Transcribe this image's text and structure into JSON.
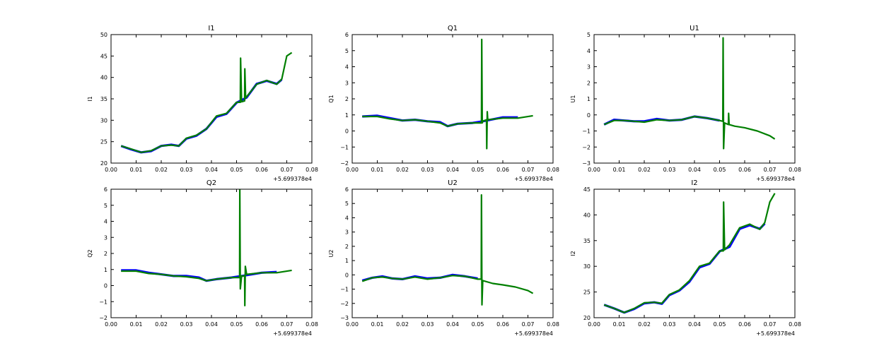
{
  "colors": {
    "series_a": "#0000ff",
    "series_b": "#007f00",
    "axes": "#000000",
    "background": "#ffffff"
  },
  "chart_data": [
    {
      "type": "line",
      "title": "I1",
      "ylabel": "I1",
      "xlabel": "",
      "xlim": [
        0.0,
        0.08
      ],
      "ylim": [
        20,
        50
      ],
      "x_ticks": [
        "0.00",
        "0.01",
        "0.02",
        "0.03",
        "0.04",
        "0.05",
        "0.06",
        "0.07",
        "0.08"
      ],
      "y_ticks": [
        "20",
        "25",
        "30",
        "35",
        "40",
        "45",
        "50"
      ],
      "x_offset": "+5.699378e4",
      "series": [
        {
          "name": "blue",
          "color": "#0000ff",
          "x": [
            0.004,
            0.008,
            0.012,
            0.016,
            0.02,
            0.024,
            0.027,
            0.03,
            0.034,
            0.038,
            0.042,
            0.046,
            0.05,
            0.054,
            0.058,
            0.062,
            0.066,
            0.068
          ],
          "y": [
            24,
            23.2,
            22.5,
            22.8,
            24,
            24.3,
            24,
            25.7,
            26.4,
            28,
            30.8,
            31.5,
            34.1,
            35.3,
            38.5,
            39.2,
            38.5,
            39.5
          ]
        },
        {
          "name": "green",
          "color": "#007f00",
          "x": [
            0.004,
            0.008,
            0.012,
            0.016,
            0.02,
            0.024,
            0.027,
            0.03,
            0.034,
            0.038,
            0.042,
            0.046,
            0.05,
            0.0515,
            0.0516,
            0.052,
            0.0532,
            0.0533,
            0.0536,
            0.058,
            0.062,
            0.066,
            0.068,
            0.07,
            0.072
          ],
          "y": [
            24,
            23.3,
            22.5,
            22.9,
            24,
            24.2,
            24,
            25.8,
            26.5,
            28,
            31,
            31.6,
            34.2,
            34.2,
            44.5,
            34.3,
            34.5,
            42,
            35.2,
            38.4,
            39.3,
            38.4,
            39.6,
            45,
            45.8
          ]
        }
      ]
    },
    {
      "type": "line",
      "title": "Q1",
      "ylabel": "Q1",
      "xlabel": "",
      "xlim": [
        0.0,
        0.08
      ],
      "ylim": [
        -2,
        6
      ],
      "x_ticks": [
        "0.00",
        "0.01",
        "0.02",
        "0.03",
        "0.04",
        "0.05",
        "0.06",
        "0.07",
        "0.08"
      ],
      "y_ticks": [
        "−2",
        "−1",
        "0",
        "1",
        "2",
        "3",
        "4",
        "5",
        "6"
      ],
      "x_offset": "+5.699378e4",
      "series": [
        {
          "name": "blue",
          "color": "#0000ff",
          "x": [
            0.004,
            0.01,
            0.015,
            0.02,
            0.025,
            0.03,
            0.035,
            0.038,
            0.042,
            0.048,
            0.052,
            0.06,
            0.066
          ],
          "y": [
            0.9,
            0.95,
            0.8,
            0.65,
            0.7,
            0.6,
            0.55,
            0.3,
            0.45,
            0.5,
            0.6,
            0.85,
            0.85
          ]
        },
        {
          "name": "green",
          "color": "#007f00",
          "x": [
            0.004,
            0.01,
            0.015,
            0.02,
            0.025,
            0.03,
            0.035,
            0.038,
            0.042,
            0.048,
            0.0515,
            0.0516,
            0.0518,
            0.052,
            0.0535,
            0.0536,
            0.0538,
            0.054,
            0.06,
            0.066,
            0.072
          ],
          "y": [
            0.9,
            0.9,
            0.75,
            0.65,
            0.7,
            0.6,
            0.5,
            0.3,
            0.45,
            0.5,
            0.5,
            5.7,
            0.5,
            0.6,
            0.7,
            -1.1,
            1.2,
            0.7,
            0.8,
            0.8,
            0.95
          ]
        }
      ]
    },
    {
      "type": "line",
      "title": "U1",
      "ylabel": "U1",
      "xlabel": "",
      "xlim": [
        0.0,
        0.08
      ],
      "ylim": [
        -3,
        5
      ],
      "x_ticks": [
        "0.00",
        "0.01",
        "0.02",
        "0.03",
        "0.04",
        "0.05",
        "0.06",
        "0.07",
        "0.08"
      ],
      "y_ticks": [
        "−3",
        "−2",
        "−1",
        "0",
        "1",
        "2",
        "3",
        "4",
        "5"
      ],
      "x_offset": "+5.699378e4",
      "series": [
        {
          "name": "blue",
          "color": "#0000ff",
          "x": [
            0.004,
            0.008,
            0.012,
            0.016,
            0.02,
            0.025,
            0.03,
            0.035,
            0.04,
            0.045,
            0.05
          ],
          "y": [
            -0.6,
            -0.3,
            -0.35,
            -0.4,
            -0.4,
            -0.25,
            -0.35,
            -0.3,
            -0.1,
            -0.2,
            -0.35
          ]
        },
        {
          "name": "green",
          "color": "#007f00",
          "x": [
            0.004,
            0.008,
            0.012,
            0.016,
            0.02,
            0.025,
            0.03,
            0.035,
            0.04,
            0.045,
            0.05,
            0.0513,
            0.0514,
            0.0516,
            0.052,
            0.0535,
            0.0536,
            0.0538,
            0.056,
            0.06,
            0.065,
            0.07,
            0.072
          ],
          "y": [
            -0.6,
            -0.35,
            -0.35,
            -0.4,
            -0.45,
            -0.3,
            -0.35,
            -0.3,
            -0.1,
            -0.2,
            -0.35,
            -0.4,
            4.8,
            -2.1,
            -0.5,
            -0.6,
            0.1,
            -0.6,
            -0.7,
            -0.8,
            -1.0,
            -1.3,
            -1.5
          ]
        }
      ]
    },
    {
      "type": "line",
      "title": "Q2",
      "ylabel": "Q2",
      "xlabel": "",
      "xlim": [
        0.0,
        0.08
      ],
      "ylim": [
        -2,
        6
      ],
      "x_ticks": [
        "0.00",
        "0.01",
        "0.02",
        "0.03",
        "0.04",
        "0.05",
        "0.06",
        "0.07",
        "0.08"
      ],
      "y_ticks": [
        "−2",
        "−1",
        "0",
        "1",
        "2",
        "3",
        "4",
        "5",
        "6"
      ],
      "x_offset": "+5.699378e4",
      "series": [
        {
          "name": "blue",
          "color": "#0000ff",
          "x": [
            0.004,
            0.01,
            0.015,
            0.02,
            0.025,
            0.03,
            0.035,
            0.038,
            0.042,
            0.048,
            0.052,
            0.06,
            0.066
          ],
          "y": [
            0.95,
            0.95,
            0.8,
            0.7,
            0.6,
            0.6,
            0.5,
            0.3,
            0.4,
            0.5,
            0.6,
            0.8,
            0.85
          ]
        },
        {
          "name": "green",
          "color": "#007f00",
          "x": [
            0.004,
            0.01,
            0.015,
            0.02,
            0.025,
            0.03,
            0.035,
            0.038,
            0.042,
            0.048,
            0.0512,
            0.0513,
            0.0515,
            0.052,
            0.0532,
            0.0533,
            0.0535,
            0.054,
            0.06,
            0.066,
            0.072
          ],
          "y": [
            0.9,
            0.9,
            0.75,
            0.7,
            0.6,
            0.55,
            0.45,
            0.3,
            0.4,
            0.5,
            0.5,
            6.0,
            -0.2,
            0.6,
            0.6,
            -1.25,
            1.2,
            0.7,
            0.8,
            0.8,
            0.95
          ]
        }
      ]
    },
    {
      "type": "line",
      "title": "U2",
      "ylabel": "U2",
      "xlabel": "",
      "xlim": [
        0.0,
        0.08
      ],
      "ylim": [
        -3,
        6
      ],
      "x_ticks": [
        "0.00",
        "0.01",
        "0.02",
        "0.03",
        "0.04",
        "0.05",
        "0.06",
        "0.07",
        "0.08"
      ],
      "y_ticks": [
        "−3",
        "−2",
        "−1",
        "0",
        "1",
        "2",
        "3",
        "4",
        "5",
        "6"
      ],
      "x_offset": "+5.699378e4",
      "series": [
        {
          "name": "blue",
          "color": "#0000ff",
          "x": [
            0.004,
            0.008,
            0.012,
            0.016,
            0.02,
            0.025,
            0.03,
            0.035,
            0.04,
            0.045,
            0.05
          ],
          "y": [
            -0.4,
            -0.2,
            -0.1,
            -0.25,
            -0.3,
            -0.1,
            -0.25,
            -0.2,
            0.0,
            -0.1,
            -0.25
          ]
        },
        {
          "name": "green",
          "color": "#007f00",
          "x": [
            0.004,
            0.008,
            0.012,
            0.016,
            0.02,
            0.025,
            0.03,
            0.035,
            0.04,
            0.045,
            0.05,
            0.0514,
            0.0515,
            0.0517,
            0.052,
            0.056,
            0.06,
            0.065,
            0.07,
            0.072
          ],
          "y": [
            -0.45,
            -0.2,
            -0.15,
            -0.25,
            -0.3,
            -0.15,
            -0.3,
            -0.2,
            -0.05,
            -0.1,
            -0.3,
            -0.3,
            5.6,
            -2.1,
            -0.4,
            -0.6,
            -0.7,
            -0.85,
            -1.1,
            -1.3
          ]
        }
      ]
    },
    {
      "type": "line",
      "title": "I2",
      "ylabel": "I2",
      "xlabel": "",
      "xlim": [
        0.0,
        0.08
      ],
      "ylim": [
        20,
        45
      ],
      "x_ticks": [
        "0.00",
        "0.01",
        "0.02",
        "0.03",
        "0.04",
        "0.05",
        "0.06",
        "0.07",
        "0.08"
      ],
      "y_ticks": [
        "20",
        "25",
        "30",
        "35",
        "40",
        "45"
      ],
      "x_offset": "+5.699378e4",
      "series": [
        {
          "name": "blue",
          "color": "#0000ff",
          "x": [
            0.004,
            0.008,
            0.012,
            0.016,
            0.02,
            0.024,
            0.027,
            0.03,
            0.034,
            0.038,
            0.042,
            0.046,
            0.05,
            0.054,
            0.058,
            0.062,
            0.066,
            0.068
          ],
          "y": [
            22.5,
            21.8,
            21.0,
            21.7,
            22.8,
            23.0,
            22.7,
            24.4,
            25.3,
            27,
            29.8,
            30.5,
            32.9,
            33.8,
            37.3,
            38.0,
            37.3,
            38.3
          ]
        },
        {
          "name": "green",
          "color": "#007f00",
          "x": [
            0.004,
            0.008,
            0.012,
            0.016,
            0.02,
            0.024,
            0.027,
            0.03,
            0.034,
            0.038,
            0.042,
            0.046,
            0.05,
            0.0515,
            0.0516,
            0.052,
            0.054,
            0.058,
            0.062,
            0.066,
            0.068,
            0.07,
            0.072
          ],
          "y": [
            22.5,
            21.8,
            21.0,
            21.8,
            22.9,
            23.0,
            22.8,
            24.5,
            25.4,
            27.2,
            30,
            30.6,
            33,
            33,
            42.5,
            33.2,
            34.2,
            37.5,
            38.2,
            37.2,
            38.5,
            42.5,
            44.2
          ]
        }
      ]
    }
  ]
}
